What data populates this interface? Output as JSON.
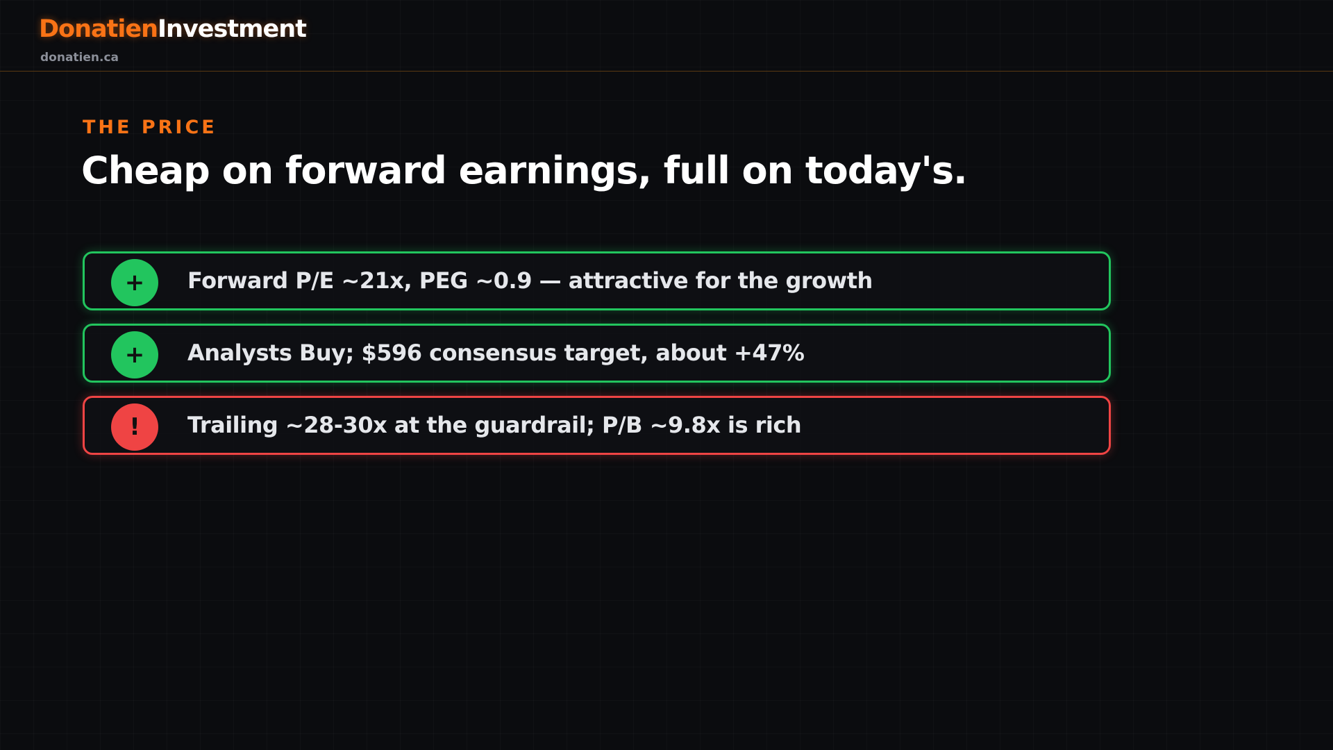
{
  "header": {
    "brand_primary": "Donatien",
    "brand_secondary": "Investment",
    "site": "donatien.ca"
  },
  "slide": {
    "eyebrow": "THE PRICE",
    "title": "Cheap on forward earnings, full on today's.",
    "items": [
      {
        "icon": "+",
        "tone": "positive",
        "text": "Forward P/E ~21x, PEG ~0.9 — attractive for the growth"
      },
      {
        "icon": "+",
        "tone": "positive",
        "text": "Analysts Buy; $596 consensus target, about +47%"
      },
      {
        "icon": "!",
        "tone": "negative",
        "text": "Trailing ~28-30x at the guardrail; P/B ~9.8x is rich"
      }
    ]
  },
  "tone_colors": {
    "positive": "#22c55e",
    "negative": "#ef4444"
  }
}
